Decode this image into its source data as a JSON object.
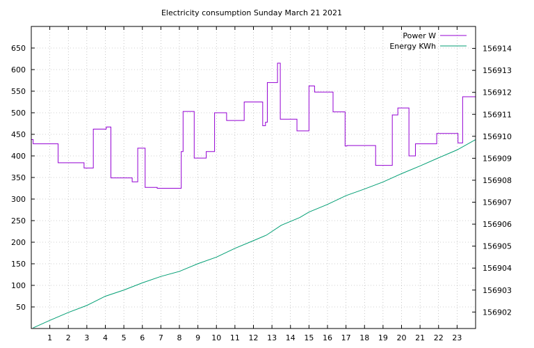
{
  "chart_data": {
    "type": "line",
    "title": "Electricity consumption Sunday March 21 2021",
    "xlabel": "",
    "ylabel": "",
    "y2label": "",
    "xlim": [
      0,
      24
    ],
    "ylim": [
      0,
      700
    ],
    "y2lim": [
      156901.25,
      156915.0
    ],
    "x_ticks": [
      1,
      2,
      3,
      4,
      5,
      6,
      7,
      8,
      9,
      10,
      11,
      12,
      13,
      14,
      15,
      16,
      17,
      18,
      19,
      20,
      21,
      22,
      23
    ],
    "x_tick_labels": [
      "1",
      "2",
      "3",
      "4",
      "5",
      "6",
      "7",
      "8",
      "9",
      "10",
      "11",
      "12",
      "13",
      "14",
      "15",
      "16",
      "17",
      "18",
      "19",
      "20",
      "21",
      "22",
      "23"
    ],
    "y_ticks": [
      50,
      100,
      150,
      200,
      250,
      300,
      350,
      400,
      450,
      500,
      550,
      600,
      650
    ],
    "y_tick_labels": [
      "50",
      "100",
      "150",
      "200",
      "250",
      "300",
      "350",
      "400",
      "450",
      "500",
      "550",
      "600",
      "650"
    ],
    "y2_ticks": [
      156902,
      156903,
      156904,
      156905,
      156906,
      156907,
      156908,
      156909,
      156910,
      156911,
      156912,
      156913,
      156914
    ],
    "y2_tick_labels": [
      "156902",
      "156903",
      "156904",
      "156905",
      "156906",
      "156907",
      "156908",
      "156909",
      "156910",
      "156911",
      "156912",
      "156913",
      "156914"
    ],
    "grid": true,
    "legend_position": "top-right",
    "series": [
      {
        "name": "Power W",
        "axis": "y",
        "color": "#9400d3",
        "step": true,
        "x": [
          0,
          0.1,
          1.45,
          2.85,
          3.35,
          3.4,
          4.05,
          4.3,
          5.45,
          5.75,
          6.15,
          6.8,
          8.1,
          8.2,
          8.8,
          9.45,
          9.9,
          10.55,
          11.5,
          12.5,
          12.65,
          12.75,
          13.3,
          13.45,
          14.35,
          15.0,
          15.3,
          16.3,
          16.95,
          17.05,
          18.6,
          19.5,
          19.8,
          20.4,
          20.75,
          21.9,
          23.05,
          23.3,
          24.0
        ],
        "y": [
          438,
          428,
          384,
          372,
          462,
          462,
          467,
          349,
          340,
          418,
          327,
          325,
          410,
          503,
          395,
          410,
          500,
          482,
          525,
          470,
          478,
          570,
          615,
          485,
          458,
          562,
          548,
          502,
          423,
          424,
          378,
          495,
          511,
          400,
          428,
          452,
          430,
          537,
          537
        ]
      },
      {
        "name": "Energy KWh",
        "axis": "y2",
        "color": "#009e73",
        "step": false,
        "x": [
          0.1,
          1.0,
          2.0,
          3.0,
          4.0,
          5.0,
          6.0,
          7.0,
          8.0,
          9.0,
          10.0,
          11.0,
          12.0,
          12.7,
          13.5,
          14.5,
          15.0,
          16.0,
          17.0,
          18.0,
          19.0,
          20.0,
          21.0,
          22.0,
          23.0,
          24.0
        ],
        "y": [
          156901.28,
          156901.62,
          156901.98,
          156902.3,
          156902.72,
          156903.0,
          156903.33,
          156903.62,
          156903.85,
          156904.2,
          156904.5,
          156904.9,
          156905.25,
          156905.5,
          156905.95,
          156906.3,
          156906.55,
          156906.9,
          156907.3,
          156907.6,
          156907.92,
          156908.3,
          156908.65,
          156909.02,
          156909.38,
          156909.85
        ]
      }
    ]
  }
}
